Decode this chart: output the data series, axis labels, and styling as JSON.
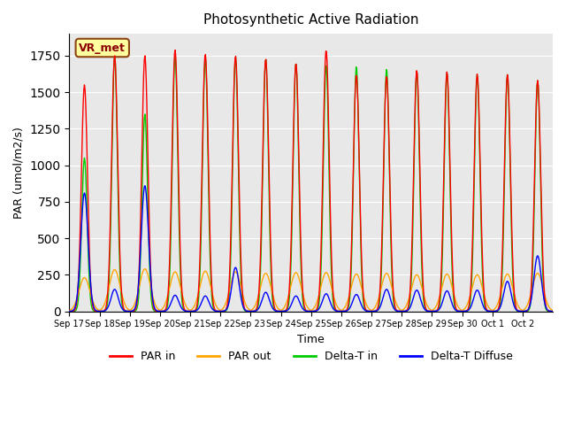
{
  "title": "Photosynthetic Active Radiation",
  "xlabel": "Time",
  "ylabel": "PAR (umol/m2/s)",
  "ylim": [
    0,
    1900
  ],
  "legend_label": "VR_met",
  "series_labels": [
    "PAR in",
    "PAR out",
    "Delta-T in",
    "Delta-T Diffuse"
  ],
  "series_colors": [
    "#ff0000",
    "#ffa500",
    "#00cc00",
    "#0000ff"
  ],
  "background_color": "#e8e8e8",
  "x_tick_labels": [
    "Sep 17",
    "Sep 18",
    "Sep 19",
    "Sep 20",
    "Sep 21",
    "Sep 22",
    "Sep 23",
    "Sep 24",
    "Sep 25",
    "Sep 26",
    "Sep 27",
    "Sep 28",
    "Sep 29",
    "Sep 30",
    "Oct 1",
    "Oct 2"
  ],
  "n_days": 16,
  "points_per_day": 48,
  "day_peaks": {
    "par_in": [
      1550,
      1750,
      1750,
      1790,
      1760,
      1750,
      1730,
      1700,
      1790,
      1620,
      1610,
      1650,
      1640,
      1625,
      1620,
      1580
    ],
    "par_out": [
      230,
      285,
      290,
      270,
      275,
      270,
      260,
      265,
      265,
      255,
      260,
      250,
      255,
      250,
      255,
      260
    ],
    "delta_t_in": [
      1050,
      1750,
      1350,
      1750,
      1740,
      1740,
      1730,
      1700,
      1690,
      1680,
      1660,
      1640,
      1630,
      1620,
      1620,
      1580
    ],
    "delta_t_diffuse": [
      810,
      150,
      860,
      110,
      105,
      300,
      130,
      105,
      120,
      115,
      150,
      145,
      140,
      145,
      205,
      380
    ]
  }
}
